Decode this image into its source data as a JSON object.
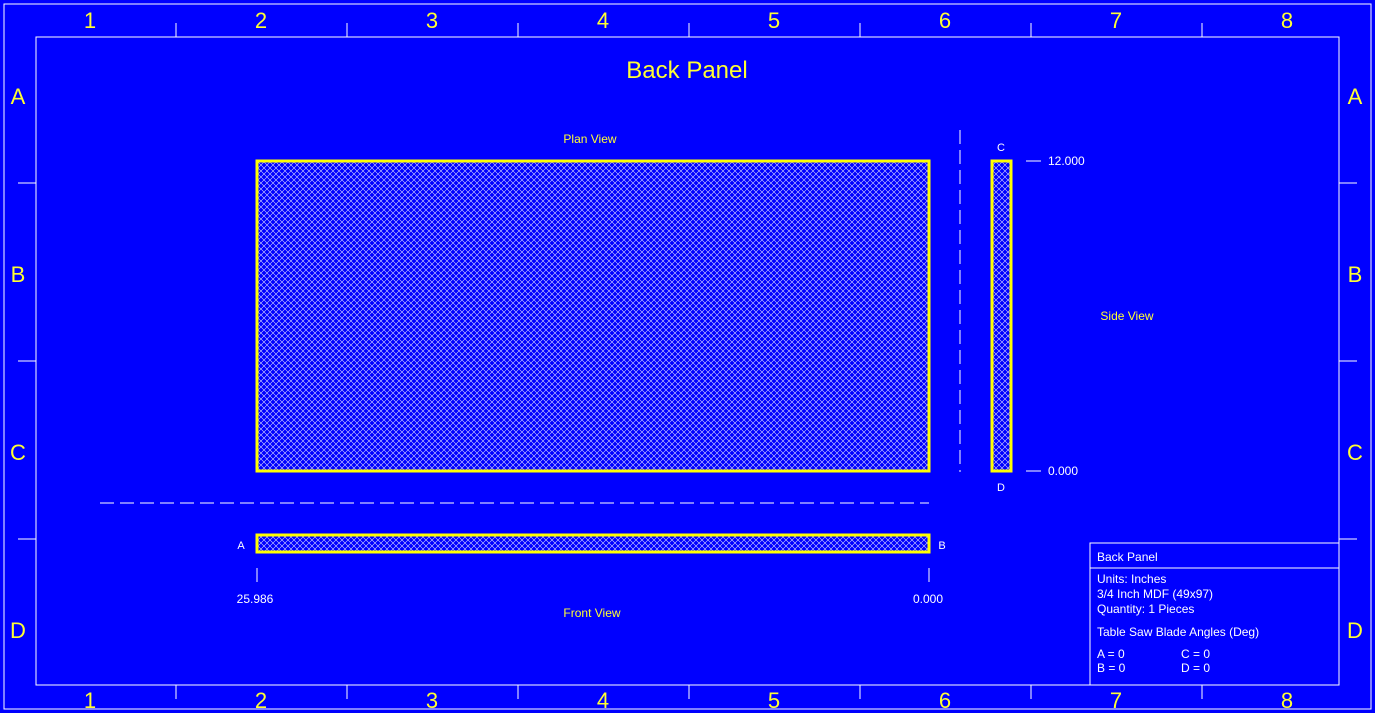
{
  "title": "Back Panel",
  "grid": {
    "columns": [
      "1",
      "2",
      "3",
      "4",
      "5",
      "6",
      "7",
      "8"
    ],
    "rows": [
      "A",
      "B",
      "C",
      "D"
    ]
  },
  "views": {
    "plan_label": "Plan View",
    "side_label": "Side View",
    "front_label": "Front View"
  },
  "edges": {
    "a": "A",
    "b": "B",
    "c": "C",
    "d": "D"
  },
  "dimensions": {
    "side_top": "12.000",
    "side_bottom": "0.000",
    "front_left": "25.986",
    "front_right": "0.000"
  },
  "title_block": {
    "name": "Back Panel",
    "units": "Units: Inches",
    "material": "3/4 Inch MDF (49x97)",
    "quantity": "Quantity: 1 Pieces",
    "angles_heading": "Table Saw Blade Angles (Deg)",
    "angle_a": "A = 0",
    "angle_b": "B = 0",
    "angle_c": "C = 0",
    "angle_d": "D = 0"
  },
  "colors": {
    "background": "#0000ff",
    "grid_text": "#ffff33",
    "outline": "#ffff00",
    "lines": "#ffffff"
  }
}
